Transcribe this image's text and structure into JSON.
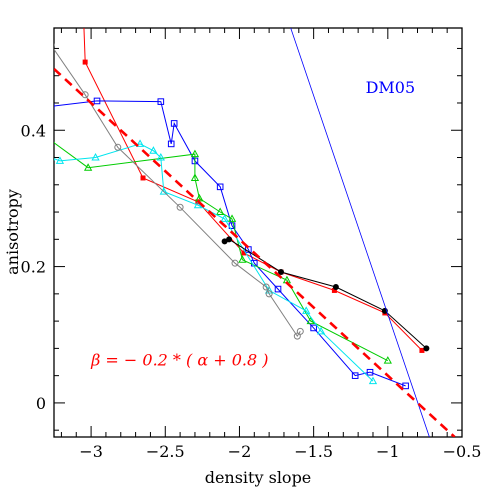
{
  "chart_data": {
    "type": "line",
    "xlabel": "density slope",
    "ylabel": "anisotropy",
    "xlim": [
      -3.25,
      -0.5
    ],
    "ylim": [
      -0.05,
      0.55
    ],
    "x_ticks": [
      -3,
      -2.5,
      -2,
      -1.5,
      -1,
      -0.5
    ],
    "x_tick_labels": [
      "−3",
      "−2.5",
      "−2",
      "−1.5",
      "−1",
      "−0.5"
    ],
    "y_ticks": [
      0,
      0.2,
      0.4
    ],
    "y_tick_labels": [
      "0",
      "0.2",
      "0.4"
    ],
    "grid": false,
    "annotations": [
      {
        "text": "DM05",
        "x": -1.15,
        "y": 0.455,
        "color": "#0000ff"
      },
      {
        "text": "β  =  − 0.2 * ( α  + 0.8 )",
        "x": -3.0,
        "y": 0.055,
        "color": "#ff0000"
      }
    ],
    "series": [
      {
        "color": "#ff0000",
        "marker": "square-filled",
        "dash": false,
        "x": [
          -3.05,
          -3.04,
          -2.65,
          -2.28,
          -1.97,
          -1.72,
          -1.36,
          -1.02,
          -0.77
        ],
        "y": [
          0.56,
          0.5,
          0.33,
          0.295,
          0.22,
          0.192,
          0.165,
          0.132,
          0.077
        ]
      },
      {
        "color": "#0000ff",
        "marker": "square-open",
        "dash": false,
        "x": [
          -3.27,
          -2.96,
          -2.53,
          -2.46,
          -2.44,
          -2.3,
          -2.13,
          -2.05,
          -1.94,
          -1.9,
          -1.74,
          -1.5,
          -1.22,
          -1.12,
          -0.88
        ],
        "y": [
          0.435,
          0.443,
          0.442,
          0.38,
          0.41,
          0.355,
          0.317,
          0.26,
          0.225,
          0.205,
          0.167,
          0.11,
          0.04,
          0.045,
          0.025
        ]
      },
      {
        "color": "#00cc00",
        "marker": "triangle-open",
        "dash": false,
        "x": [
          -3.27,
          -3.02,
          -2.3,
          -2.3,
          -2.27,
          -2.13,
          -2.05,
          -1.98,
          -1.68,
          -1.52,
          -1.0
        ],
        "y": [
          0.385,
          0.345,
          0.365,
          0.33,
          0.3,
          0.28,
          0.27,
          0.21,
          0.18,
          0.12,
          0.062
        ]
      },
      {
        "color": "#00e5ee",
        "marker": "triangle-open",
        "dash": false,
        "x": [
          -3.27,
          -3.21,
          -2.97,
          -2.67,
          -2.58,
          -2.53,
          -2.51,
          -2.28,
          -2.1,
          -1.8,
          -1.55,
          -1.45,
          -1.1
        ],
        "y": [
          0.36,
          0.355,
          0.36,
          0.38,
          0.37,
          0.36,
          0.31,
          0.29,
          0.27,
          0.165,
          0.135,
          0.105,
          0.032
        ]
      },
      {
        "color": "#000000",
        "marker": "circle-filled",
        "dash": false,
        "x": [
          -2.1,
          -2.07,
          -1.72,
          -1.35,
          -1.02,
          -0.74
        ],
        "y": [
          0.237,
          0.24,
          0.192,
          0.17,
          0.135,
          0.08
        ]
      },
      {
        "color": "#808080",
        "marker": "circle-open",
        "dash": false,
        "x": [
          -3.27,
          -3.04,
          -2.82,
          -2.4,
          -2.03,
          -1.82,
          -1.8,
          -1.61,
          -1.59
        ],
        "y": [
          0.525,
          0.452,
          0.375,
          0.287,
          0.205,
          0.17,
          0.16,
          0.098,
          0.105
        ]
      },
      {
        "color": "#0000ff",
        "marker": "none",
        "dash": false,
        "width": 0.8,
        "x": [
          -1.67,
          -0.72
        ],
        "y": [
          0.56,
          -0.05
        ]
      },
      {
        "color": "#ff0000",
        "marker": "none",
        "dash": true,
        "width": 2.6,
        "x": [
          -3.25,
          -0.55
        ],
        "y": [
          0.49,
          -0.05
        ]
      }
    ]
  }
}
